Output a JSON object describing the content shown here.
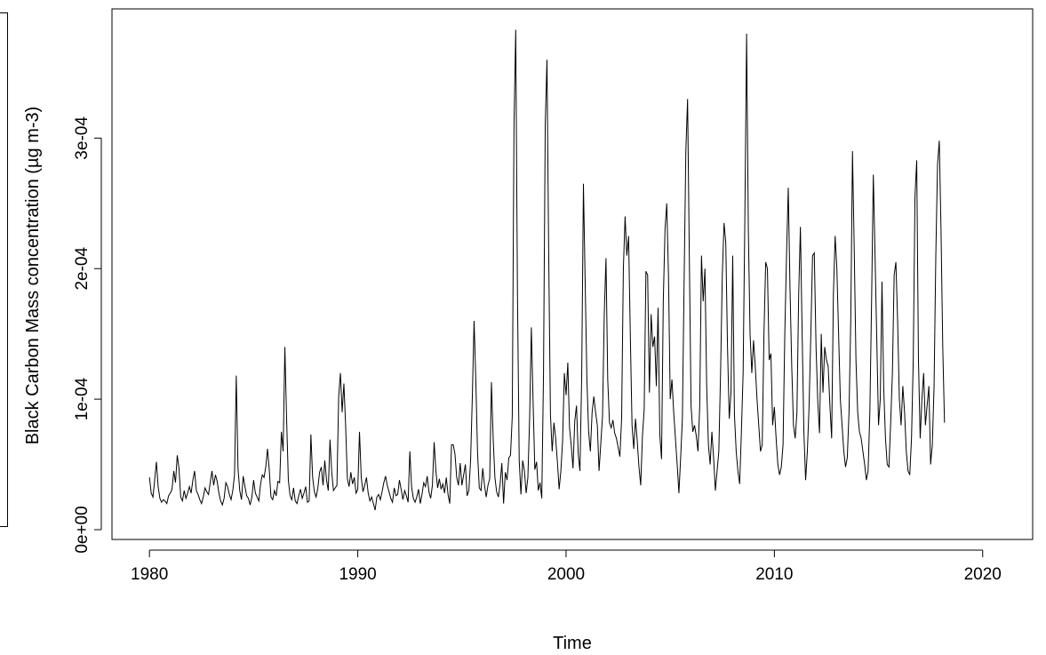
{
  "chart_data": {
    "type": "line",
    "title": "",
    "xlabel": "Time",
    "ylabel": "Black Carbon Mass concentration (µg m-3)",
    "xlim": [
      1978.2,
      2022.4
    ],
    "ylim": [
      -7.5e-06,
      0.000399
    ],
    "x_ticks": [
      1980,
      1990,
      2000,
      2010,
      2020
    ],
    "x_tick_labels": [
      "1980",
      "1990",
      "2000",
      "2010",
      "2020"
    ],
    "y_ticks": [
      0,
      0.0001,
      0.0002,
      0.0003
    ],
    "y_tick_labels": [
      "0e+00",
      "1e-04",
      "2e-04",
      "3e-04"
    ],
    "grid": false,
    "legend": "none",
    "color": "#000000",
    "series": [
      {
        "start": 1980.0,
        "frequency": 12,
        "values": [
          4e-05,
          2.8e-05,
          2.5e-05,
          3.8e-05,
          5.2e-05,
          3.3e-05,
          2.4e-05,
          2.1e-05,
          2.3e-05,
          2.2e-05,
          2e-05,
          2.6e-05,
          2.8e-05,
          3.1e-05,
          4.5e-05,
          3.6e-05,
          5.7e-05,
          4.7e-05,
          2.5e-05,
          2.2e-05,
          3e-05,
          2.4e-05,
          2.8e-05,
          3.3e-05,
          2.8e-05,
          3.8e-05,
          4.5e-05,
          3e-05,
          2.7e-05,
          2.3e-05,
          2e-05,
          2.5e-05,
          3.2e-05,
          2.9e-05,
          2.7e-05,
          3.6e-05,
          4.5e-05,
          3.4e-05,
          4.2e-05,
          3.7e-05,
          2.8e-05,
          2.2e-05,
          1.9e-05,
          2.4e-05,
          3.6e-05,
          3.3e-05,
          2.7e-05,
          2.3e-05,
          3e-05,
          4.2e-05,
          0.000118,
          4.7e-05,
          3e-05,
          2.3e-05,
          4.1e-05,
          3.3e-05,
          2.6e-05,
          2.4e-05,
          1.9e-05,
          2.5e-05,
          3.8e-05,
          2.8e-05,
          2.5e-05,
          2.2e-05,
          3.5e-05,
          4.2e-05,
          4e-05,
          4.8e-05,
          6.2e-05,
          4.6e-05,
          2.5e-05,
          2.3e-05,
          3e-05,
          2.6e-05,
          3.7e-05,
          3.6e-05,
          7.5e-05,
          6e-05,
          0.00014,
          8.5e-05,
          3.8e-05,
          2.6e-05,
          2.3e-05,
          3.2e-05,
          2.2e-05,
          2e-05,
          2.6e-05,
          3.1e-05,
          2.4e-05,
          2.8e-05,
          3.3e-05,
          2.1e-05,
          2.2e-05,
          7.3e-05,
          4e-05,
          2.9e-05,
          2.5e-05,
          3.2e-05,
          4.4e-05,
          4.8e-05,
          3.4e-05,
          5.3e-05,
          3.8e-05,
          3e-05,
          6.9e-05,
          4.4e-05,
          3e-05,
          3.2e-05,
          3.4e-05,
          0.000102,
          0.00012,
          9e-05,
          0.000112,
          8e-05,
          3.9e-05,
          3.3e-05,
          4.4e-05,
          3.5e-05,
          4e-05,
          2.8e-05,
          3.1e-05,
          7.5e-05,
          4e-05,
          2.9e-05,
          3.4e-05,
          4e-05,
          2.8e-05,
          2.2e-05,
          2.5e-05,
          2e-05,
          1.5e-05,
          2.5e-05,
          2.7e-05,
          2.3e-05,
          2.9e-05,
          3.6e-05,
          4.1e-05,
          3.4e-05,
          2.9e-05,
          2.4e-05,
          2.1e-05,
          3.2e-05,
          2.6e-05,
          2.7e-05,
          3.8e-05,
          3.1e-05,
          2.3e-05,
          3e-05,
          2.6e-05,
          2.1e-05,
          6e-05,
          3.3e-05,
          2.4e-05,
          2.1e-05,
          2.5e-05,
          3.1e-05,
          2e-05,
          2.7e-05,
          3.6e-05,
          3.3e-05,
          4.1e-05,
          2.9e-05,
          2.4e-05,
          3.4e-05,
          6.7e-05,
          4.5e-05,
          3.2e-05,
          3.9e-05,
          3.1e-05,
          3.5e-05,
          2.8e-05,
          4e-05,
          2.7e-05,
          2e-05,
          6.5e-05,
          6.5e-05,
          5.8e-05,
          4e-05,
          3.4e-05,
          5.1e-05,
          3.4e-05,
          4.2e-05,
          5e-05,
          2.6e-05,
          3e-05,
          5.3e-05,
          0.000102,
          0.00016,
          0.000115,
          5.9e-05,
          3.2e-05,
          3e-05,
          4.7e-05,
          3.4e-05,
          2.5e-05,
          3.4e-05,
          3.9e-05,
          0.000113,
          7e-05,
          4e-05,
          2.9e-05,
          2.5e-05,
          3.5e-05,
          5.1e-05,
          2e-05,
          4.4e-05,
          3.8e-05,
          5.5e-05,
          5.7e-05,
          8.7e-05,
          0.00031,
          0.000383,
          0.00018,
          5.3e-05,
          2.7e-05,
          5.3e-05,
          4.5e-05,
          2.8e-05,
          4e-05,
          8.5e-05,
          0.000155,
          9.8e-05,
          4.6e-05,
          5.2e-05,
          3e-05,
          3.6e-05,
          2.4e-05,
          0.00012,
          0.00031,
          0.00036,
          0.00021,
          8.8e-05,
          6e-05,
          8.2e-05,
          7e-05,
          5.2e-05,
          3.1e-05,
          4.5e-05,
          6.8e-05,
          0.00012,
          0.000103,
          0.000128,
          7.8e-05,
          6.4e-05,
          4.7e-05,
          8.3e-05,
          9.5e-05,
          5.8e-05,
          4.5e-05,
          0.000118,
          0.000265,
          0.00019,
          0.000115,
          7.5e-05,
          6e-05,
          9e-05,
          0.000102,
          9e-05,
          8e-05,
          4.5e-05,
          6.6e-05,
          8.7e-05,
          0.000165,
          0.000208,
          0.000115,
          8.2e-05,
          7.8e-05,
          8.4e-05,
          7.4e-05,
          7e-05,
          6.3e-05,
          5.6e-05,
          8.5e-05,
          0.0002,
          0.00024,
          0.00021,
          0.000225,
          0.00015,
          8e-05,
          6.2e-05,
          8.5e-05,
          6.8e-05,
          4.8e-05,
          3.4e-05,
          7.2e-05,
          9.2e-05,
          0.000198,
          0.000195,
          0.000105,
          0.000165,
          0.00014,
          0.000148,
          0.00011,
          0.00017,
          7.3e-05,
          5.4e-05,
          0.000175,
          0.00023,
          0.00025,
          0.000195,
          0.0001,
          0.000115,
          9e-05,
          7e-05,
          5e-05,
          2.8e-05,
          5.5e-05,
          8.5e-05,
          0.00019,
          0.00029,
          0.00033,
          0.00021,
          9.5e-05,
          7.5e-05,
          8e-05,
          7.2e-05,
          6e-05,
          9.5e-05,
          0.00021,
          0.000175,
          0.0002,
          0.00011,
          6.5e-05,
          5e-05,
          7.5e-05,
          5.5e-05,
          3e-05,
          4.5e-05,
          6e-05,
          0.00012,
          0.000195,
          0.000235,
          0.00022,
          0.00014,
          8.5e-05,
          0.000105,
          0.00021,
          8.8e-05,
          6e-05,
          4.5e-05,
          3.5e-05,
          7.5e-05,
          0.00012,
          0.00024,
          0.00038,
          0.00023,
          0.00015,
          0.00012,
          0.000145,
          0.000125,
          0.0001,
          8e-05,
          6e-05,
          6.5e-05,
          0.00015,
          0.000205,
          0.0002,
          0.00013,
          0.000135,
          8e-05,
          9.4e-05,
          7e-05,
          5e-05,
          4.2e-05,
          4.8e-05,
          6.5e-05,
          0.00015,
          0.00021,
          0.000262,
          0.000185,
          0.000125,
          8e-05,
          7e-05,
          9e-05,
          0.00018,
          0.000232,
          0.00015,
          7.5e-05,
          3.8e-05,
          6e-05,
          9.5e-05,
          0.00015,
          0.00021,
          0.000212,
          0.00014,
          9.8e-05,
          7.4e-05,
          0.00015,
          0.000105,
          0.00014,
          0.00013,
          0.000125,
          9.5e-05,
          7e-05,
          0.00018,
          0.000225,
          0.0002,
          0.00015,
          0.0001,
          8e-05,
          6e-05,
          4.8e-05,
          5.5e-05,
          9e-05,
          0.00016,
          0.00029,
          0.000215,
          0.00013,
          9e-05,
          7.5e-05,
          7e-05,
          6e-05,
          5e-05,
          3.8e-05,
          4.5e-05,
          9e-05,
          0.000175,
          0.000272,
          0.00021,
          0.000145,
          8e-05,
          0.0001,
          0.00019,
          0.000108,
          7e-05,
          5e-05,
          4.8e-05,
          8.2e-05,
          0.00012,
          0.000195,
          0.000205,
          0.00016,
          0.0001,
          8e-05,
          0.00011,
          9e-05,
          6e-05,
          4.5e-05,
          4.2e-05,
          7e-05,
          0.00013,
          0.000255,
          0.000283,
          0.00013,
          7e-05,
          0.0001,
          0.00012,
          8e-05,
          9.5e-05,
          0.00011,
          5e-05,
          6.5e-05,
          0.00011,
          0.00021,
          0.00028,
          0.000298,
          0.00023,
          0.00014,
          8.2e-05
        ]
      }
    ]
  }
}
